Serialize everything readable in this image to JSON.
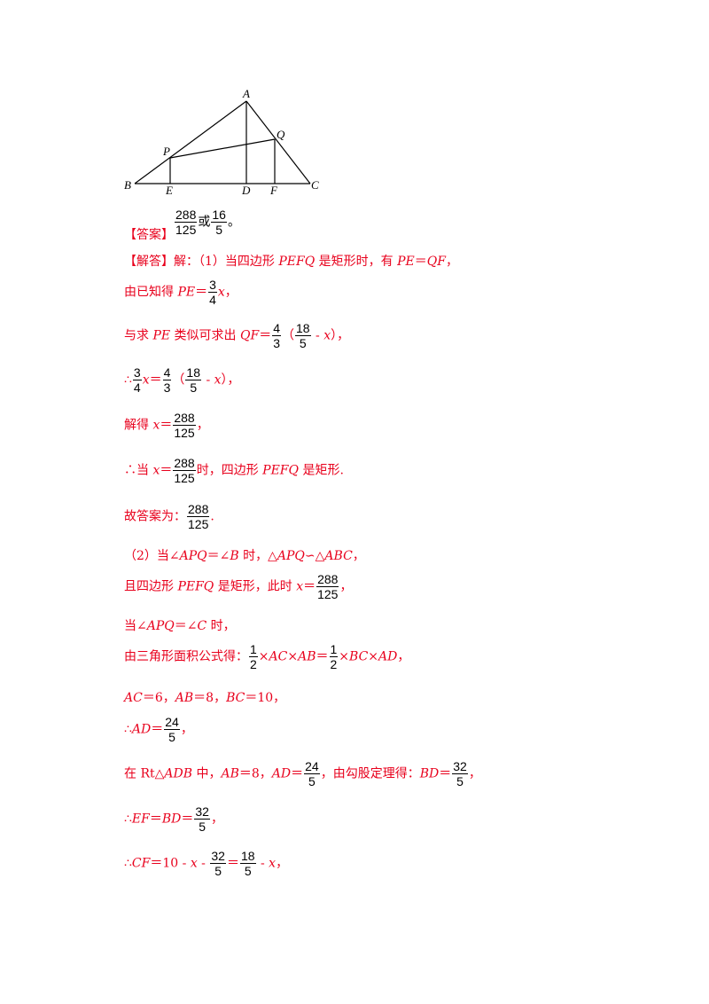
{
  "figure": {
    "labels": {
      "A": "A",
      "B": "B",
      "C": "C",
      "D": "D",
      "E": "E",
      "F": "F",
      "P": "P",
      "Q": "Q"
    }
  },
  "answer": {
    "tag": "【答案】",
    "f1_num": "288",
    "f1_den": "125",
    "or": "或",
    "f2_num": "16",
    "f2_den": "5",
    "end": "。"
  },
  "lines": {
    "l1": {
      "tag": "【解答】",
      "t1": "解：（1）当四边形 ",
      "v1": "PEFQ",
      "t2": " 是矩形时，有 ",
      "v2": "PE",
      "t3": "＝",
      "v3": "QF",
      "t4": "，"
    },
    "l2": {
      "t1": "由已知得 ",
      "v1": "PE",
      "t2": "＝",
      "fn": "3",
      "fd": "4",
      "v2": "x",
      "t3": "，"
    },
    "l3": {
      "t1": "与求 ",
      "v1": "PE",
      "t2": " 类似可求出 ",
      "v2": "QF",
      "t3": "＝",
      "f1n": "4",
      "f1d": "3",
      "t4": "（",
      "f2n": "18",
      "f2d": "5",
      "t5": " - ",
      "v3": "x",
      "t6": "），"
    },
    "l4": {
      "t1": "∴",
      "fn": "3",
      "fd": "4",
      "v1": "x",
      "t2": "＝",
      "f1n": "4",
      "f1d": "3",
      "t3": "（",
      "f2n": "18",
      "f2d": "5",
      "t4": " - ",
      "v2": "x",
      "t5": "），"
    },
    "l5": {
      "t1": "解得 ",
      "v1": "x",
      "t2": "＝",
      "fn": "288",
      "fd": "125",
      "t3": "，"
    },
    "l6": {
      "t1": "∴当 ",
      "v1": "x",
      "t2": "＝",
      "fn": "288",
      "fd": "125",
      "t3": "时，四边形 ",
      "v2": "PEFQ",
      "t4": " 是矩形."
    },
    "l7": {
      "t1": "故答案为：",
      "fn": "288",
      "fd": "125",
      "t2": "."
    },
    "l8": {
      "t1": "（2）当∠",
      "v1": "APQ",
      "t2": "＝∠",
      "v2": "B",
      "t3": " 时，△",
      "v3": "APQ",
      "t4": "∽△",
      "v4": "ABC",
      "t5": "，"
    },
    "l9": {
      "t1": "且四边形 ",
      "v1": "PEFQ",
      "t2": " 是矩形，此时 ",
      "v2": "x",
      "t3": "＝",
      "fn": "288",
      "fd": "125",
      "t4": "，"
    },
    "l10": {
      "t1": "当∠",
      "v1": "APQ",
      "t2": "＝∠",
      "v2": "C",
      "t3": " 时，"
    },
    "l11": {
      "t1": "由三角形面积公式得：",
      "f1n": "1",
      "f1d": "2",
      "t2": "×",
      "v1": "AC",
      "t3": "×",
      "v2": "AB",
      "t4": "＝",
      "f2n": "1",
      "f2d": "2",
      "t5": "×",
      "v3": "BC",
      "t6": "×",
      "v4": "AD",
      "t7": "，"
    },
    "l12": {
      "v1": "AC",
      "t1": "＝6，",
      "v2": "AB",
      "t2": "＝8，",
      "v3": "BC",
      "t3": "＝10，"
    },
    "l13": {
      "t1": "∴",
      "v1": "AD",
      "t2": "＝",
      "fn": "24",
      "fd": "5",
      "t3": "，"
    },
    "l14": {
      "t1": "在 Rt△",
      "v1": "ADB",
      "t2": " 中，",
      "v2": "AB",
      "t3": "＝8，",
      "v3": "AD",
      "t4": "＝",
      "f1n": "24",
      "f1d": "5",
      "t5": "，由勾股定理得：",
      "v4": "BD",
      "t6": "＝",
      "f2n": "32",
      "f2d": "5",
      "t7": "，"
    },
    "l15": {
      "t1": "∴",
      "v1": "EF",
      "t2": "＝",
      "v2": "BD",
      "t3": "＝",
      "fn": "32",
      "fd": "5",
      "t4": "，"
    },
    "l16": {
      "t1": "∴",
      "v1": "CF",
      "t2": "＝10 - ",
      "v2": "x",
      "t3": " - ",
      "f1n": "32",
      "f1d": "5",
      "t4": "＝",
      "f2n": "18",
      "f2d": "5",
      "t5": " - ",
      "v3": "x",
      "t6": "，"
    }
  }
}
